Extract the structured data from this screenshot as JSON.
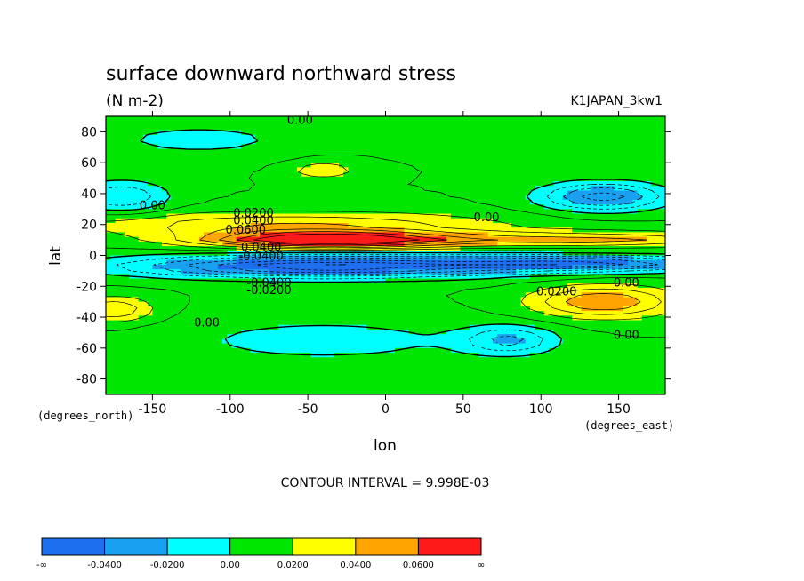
{
  "chart_data": {
    "type": "heatmap",
    "title": "surface downward northward stress",
    "units": "(N m-2)",
    "dataset": "K1JAPAN_3kw1",
    "xlabel": "lon",
    "ylabel": "lat",
    "x_units": "(degrees_east)",
    "y_units": "(degrees_north)",
    "xlim": [
      -180,
      180
    ],
    "ylim": [
      -90,
      90
    ],
    "x_ticks": [
      -150,
      -100,
      -50,
      0,
      50,
      100,
      150
    ],
    "y_ticks": [
      80,
      60,
      40,
      20,
      0,
      -20,
      -40,
      -60,
      -80
    ],
    "contour_interval": "CONTOUR INTERVAL = 9.998E-03",
    "contour_labels": [
      {
        "text": "0.00",
        "lon": -55,
        "lat": 85
      },
      {
        "text": "0.00",
        "lon": -150,
        "lat": 30
      },
      {
        "text": "0.0200",
        "lon": -85,
        "lat": 25
      },
      {
        "text": "0.0400",
        "lon": -85,
        "lat": 20
      },
      {
        "text": "0.0600",
        "lon": -90,
        "lat": 14
      },
      {
        "text": "0.0400",
        "lon": -80,
        "lat": 3
      },
      {
        "text": "-0.0400",
        "lon": -80,
        "lat": -3
      },
      {
        "text": "0.00",
        "lon": 65,
        "lat": 22
      },
      {
        "text": "-0.0400",
        "lon": -75,
        "lat": -20
      },
      {
        "text": "-0.0200",
        "lon": -75,
        "lat": -25
      },
      {
        "text": "0.0200",
        "lon": 110,
        "lat": -26
      },
      {
        "text": "0.00",
        "lon": 155,
        "lat": -20
      },
      {
        "text": "0.00",
        "lon": -115,
        "lat": -46
      },
      {
        "text": "0.00",
        "lon": 155,
        "lat": -54
      }
    ],
    "levels": [
      -0.04,
      -0.02,
      0.0,
      0.02,
      0.04,
      0.06
    ],
    "colorbar": {
      "labels": [
        "-∞",
        "-0.0400",
        "-0.0200",
        "0.00",
        "0.0200",
        "0.0400",
        "0.0600",
        "∞"
      ],
      "colors": [
        "#1e6ff0",
        "#1aa0f0",
        "#00ffff",
        "#00e600",
        "#ffff00",
        "#ffa500",
        "#ff1a1a"
      ]
    }
  }
}
